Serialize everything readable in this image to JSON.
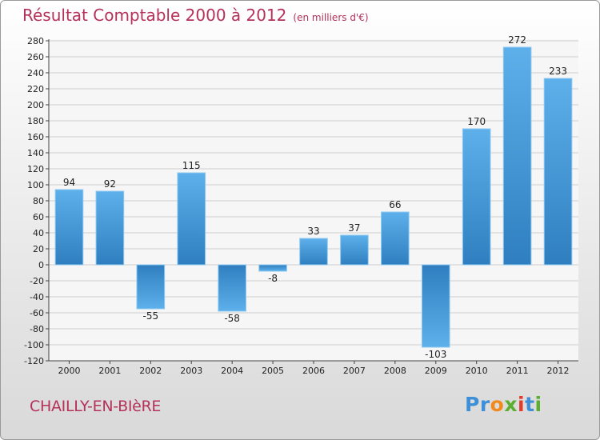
{
  "header": {
    "title": "Résultat Comptable 2000 à 2012",
    "subtitle": "(en milliers d'€)"
  },
  "footer": {
    "commune": "CHAILLY-EN-BIèRE",
    "logo_text": "Proxiti",
    "logo_letters": [
      "P",
      "r",
      "o",
      "x",
      "i",
      "t",
      "i"
    ],
    "logo_colors": [
      "#3d8fd8",
      "#3d8fd8",
      "#f08a1c",
      "#5cae2f",
      "#e23b2c",
      "#3d8fd8",
      "#5cae2f"
    ]
  },
  "colors": {
    "bar_light": "#5db0ea",
    "bar_dark": "#2f7fc0",
    "grid": "#cfcfcf",
    "axis": "#444444",
    "title": "#b5315a"
  },
  "chart_data": {
    "type": "bar",
    "title": "Résultat Comptable 2000 à 2012",
    "ylabel": "en milliers d'€",
    "categories": [
      "2000",
      "2001",
      "2002",
      "2003",
      "2004",
      "2005",
      "2006",
      "2007",
      "2008",
      "2009",
      "2010",
      "2011",
      "2012"
    ],
    "values": [
      94,
      92,
      -55,
      115,
      -58,
      -8,
      33,
      37,
      66,
      -103,
      170,
      272,
      233
    ],
    "ylim": [
      -120,
      280
    ],
    "ytick_step": 20,
    "yticks": [
      "-120",
      "-100",
      "-80",
      "-60",
      "-40",
      "-20",
      "0",
      "20",
      "40",
      "60",
      "80",
      "100",
      "120",
      "140",
      "160",
      "180",
      "200",
      "220",
      "240",
      "260",
      "280"
    ],
    "grid": true
  }
}
